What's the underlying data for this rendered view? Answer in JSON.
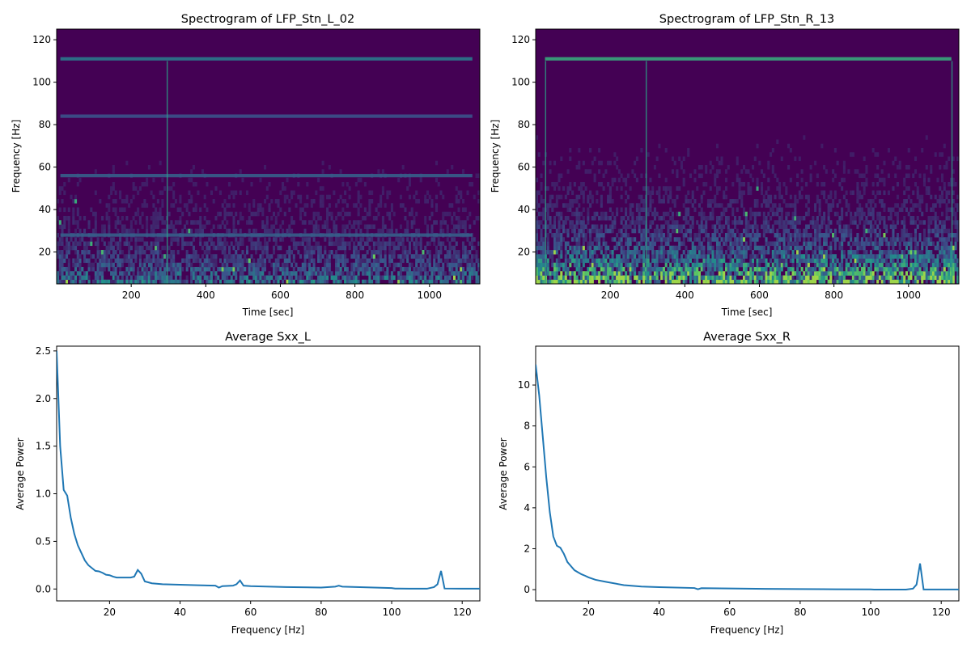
{
  "figure": {
    "colors": {
      "line": "#1f77b4",
      "spectro_bg": "#440154"
    }
  },
  "chart_data": [
    {
      "type": "heatmap",
      "colormap": "viridis",
      "title": "Spectrogram of LFP_Stn_L_02",
      "xlabel": "Time [sec]",
      "ylabel": "Frequency [Hz]",
      "xlim": [
        0,
        1135
      ],
      "ylim": [
        5,
        125
      ],
      "xticks": [
        200,
        400,
        600,
        800,
        1000
      ],
      "yticks": [
        20,
        40,
        60,
        80,
        100,
        120
      ],
      "bands_hz": [
        {
          "freq": 111,
          "intensity": 0.4
        },
        {
          "freq": 84,
          "intensity": 0.25
        },
        {
          "freq": 56,
          "intensity": 0.3
        },
        {
          "freq": 28,
          "intensity": 0.3
        }
      ],
      "transients_sec": [
        295
      ],
      "low_freq_power_level": 0.5
    },
    {
      "type": "heatmap",
      "colormap": "viridis",
      "title": "Spectrogram of LFP_Stn_R_13",
      "xlabel": "Time [sec]",
      "ylabel": "Frequency [Hz]",
      "xlim": [
        0,
        1135
      ],
      "ylim": [
        5,
        125
      ],
      "xticks": [
        200,
        400,
        600,
        800,
        1000
      ],
      "yticks": [
        20,
        40,
        60,
        80,
        100,
        120
      ],
      "bands_hz": [
        {
          "freq": 111,
          "intensity": 0.6
        }
      ],
      "transients_sec": [
        25,
        295,
        1115
      ],
      "low_freq_power_level": 0.9
    },
    {
      "type": "line",
      "title": "Average Sxx_L",
      "xlabel": "Frequency [Hz]",
      "ylabel": "Average Power",
      "xlim": [
        5,
        125
      ],
      "ylim": [
        -0.125,
        2.55
      ],
      "xticks": [
        20,
        40,
        60,
        80,
        100,
        120
      ],
      "yticks": [
        0.0,
        0.5,
        1.0,
        1.5,
        2.0,
        2.5
      ],
      "ytick_labels": [
        "0.0",
        "0.5",
        "1.0",
        "1.5",
        "2.0",
        "2.5"
      ],
      "x": [
        5,
        6,
        7,
        8,
        9,
        10,
        11,
        12,
        13,
        14,
        15,
        16,
        17,
        18,
        19,
        20,
        21,
        22,
        24,
        26,
        27,
        28,
        29,
        30,
        32,
        35,
        40,
        45,
        50,
        51,
        52,
        55,
        56,
        57,
        58,
        60,
        70,
        80,
        84,
        85,
        86,
        90,
        100,
        101,
        102,
        105,
        110,
        112,
        113,
        114,
        115,
        120,
        125
      ],
      "y": [
        2.5,
        1.5,
        1.04,
        0.98,
        0.75,
        0.58,
        0.46,
        0.38,
        0.3,
        0.25,
        0.22,
        0.19,
        0.185,
        0.17,
        0.15,
        0.145,
        0.13,
        0.12,
        0.12,
        0.12,
        0.13,
        0.2,
        0.16,
        0.08,
        0.06,
        0.05,
        0.045,
        0.04,
        0.035,
        0.015,
        0.03,
        0.035,
        0.05,
        0.09,
        0.035,
        0.03,
        0.02,
        0.015,
        0.025,
        0.035,
        0.025,
        0.02,
        0.01,
        0.005,
        0.005,
        0.003,
        0.003,
        0.02,
        0.05,
        0.19,
        0.005,
        0.003,
        0.003
      ]
    },
    {
      "type": "line",
      "title": "Average Sxx_R",
      "xlabel": "Frequency [Hz]",
      "ylabel": "Average Power",
      "xlim": [
        5,
        125
      ],
      "ylim": [
        -0.55,
        11.9
      ],
      "xticks": [
        20,
        40,
        60,
        80,
        100,
        120
      ],
      "yticks": [
        0,
        2,
        4,
        6,
        8,
        10
      ],
      "ytick_labels": [
        "0",
        "2",
        "4",
        "6",
        "8",
        "10"
      ],
      "x": [
        5,
        6,
        7,
        8,
        9,
        10,
        11,
        12,
        13,
        14,
        15,
        16,
        17,
        18,
        19,
        20,
        22,
        25,
        30,
        35,
        40,
        50,
        51,
        52,
        60,
        70,
        80,
        90,
        100,
        101,
        102,
        110,
        112,
        113,
        114,
        115,
        120,
        125
      ],
      "y": [
        11,
        9.5,
        7.5,
        5.5,
        3.8,
        2.6,
        2.15,
        2.05,
        1.75,
        1.35,
        1.15,
        0.95,
        0.85,
        0.75,
        0.68,
        0.6,
        0.48,
        0.38,
        0.22,
        0.15,
        0.12,
        0.08,
        0.02,
        0.07,
        0.06,
        0.04,
        0.03,
        0.02,
        0.015,
        0.005,
        0.005,
        0.005,
        0.05,
        0.25,
        1.28,
        0.01,
        0.01,
        0.01
      ]
    }
  ]
}
